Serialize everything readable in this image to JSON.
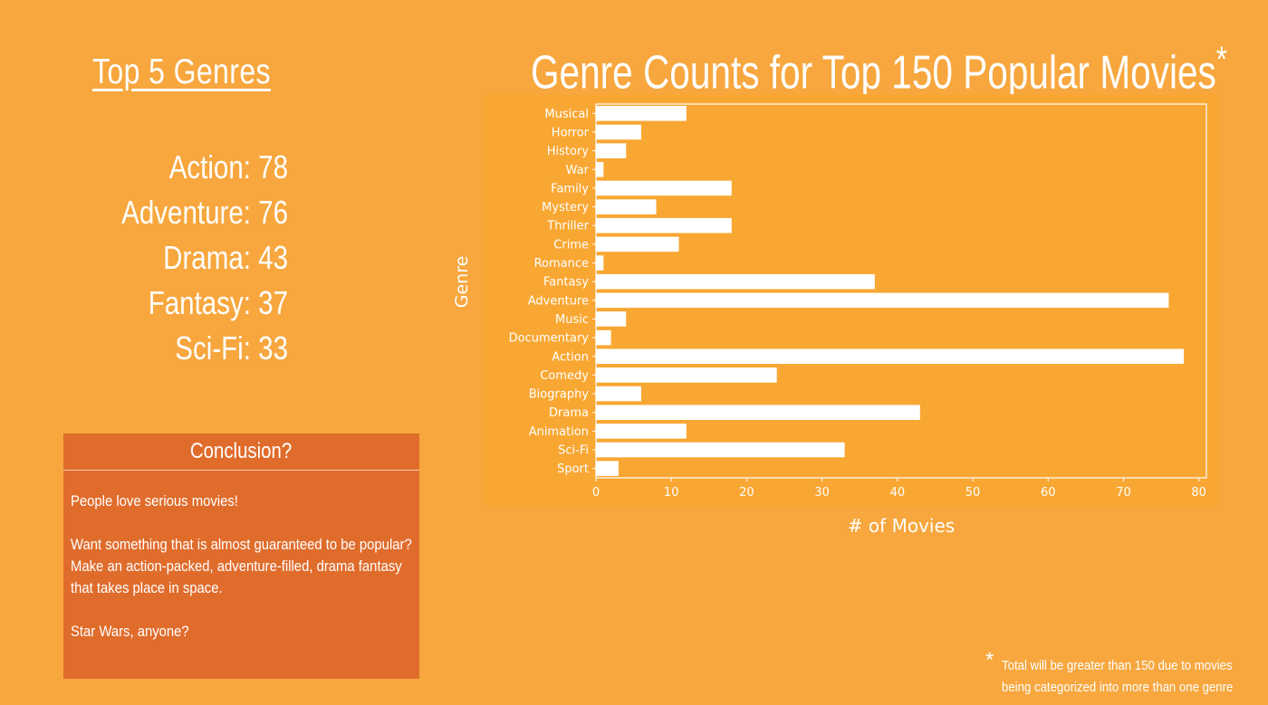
{
  "left_panel": {
    "heading": "Top 5 Genres",
    "top_genres": [
      {
        "name": "Action",
        "count": "78"
      },
      {
        "name": "Adventure",
        "count": "76"
      },
      {
        "name": "Drama",
        "count": "43"
      },
      {
        "name": "Fantasy",
        "count": "37"
      },
      {
        "name": "Sci-Fi",
        "count": "33"
      }
    ]
  },
  "conclusion": {
    "header": "Conclusion?",
    "paragraphs": [
      "People love serious movies!",
      "Want something that is almost guaranteed to be popular? Make an action-packed, adventure-filled, drama fantasy that takes place in space.",
      "Star Wars, anyone?"
    ]
  },
  "footnote": {
    "mark": "*",
    "text": "Total will be greater than 150 due to movies being categorized into more than one genre"
  },
  "colors": {
    "background": "#F7A73E",
    "plot_background": "#F9A733",
    "conclusion_box": "#E06C2C",
    "bars": "#FFFFFF"
  },
  "chart_data": {
    "type": "bar",
    "orientation": "horizontal",
    "title": "Genre Counts for Top 150 Popular Movies",
    "title_mark": "*",
    "xlabel": "# of Movies",
    "ylabel": "Genre",
    "xlim": [
      0,
      81
    ],
    "xticks": [
      0,
      10,
      20,
      30,
      40,
      50,
      60,
      70,
      80
    ],
    "grid": false,
    "categories": [
      "Musical",
      "Horror",
      "History",
      "War",
      "Family",
      "Mystery",
      "Thriller",
      "Crime",
      "Romance",
      "Fantasy",
      "Adventure",
      "Music",
      "Documentary",
      "Action",
      "Comedy",
      "Biography",
      "Drama",
      "Animation",
      "Sci-Fi",
      "Sport"
    ],
    "values": [
      12,
      6,
      4,
      1,
      18,
      8,
      18,
      11,
      1,
      37,
      76,
      4,
      2,
      78,
      24,
      6,
      43,
      12,
      33,
      3
    ]
  }
}
